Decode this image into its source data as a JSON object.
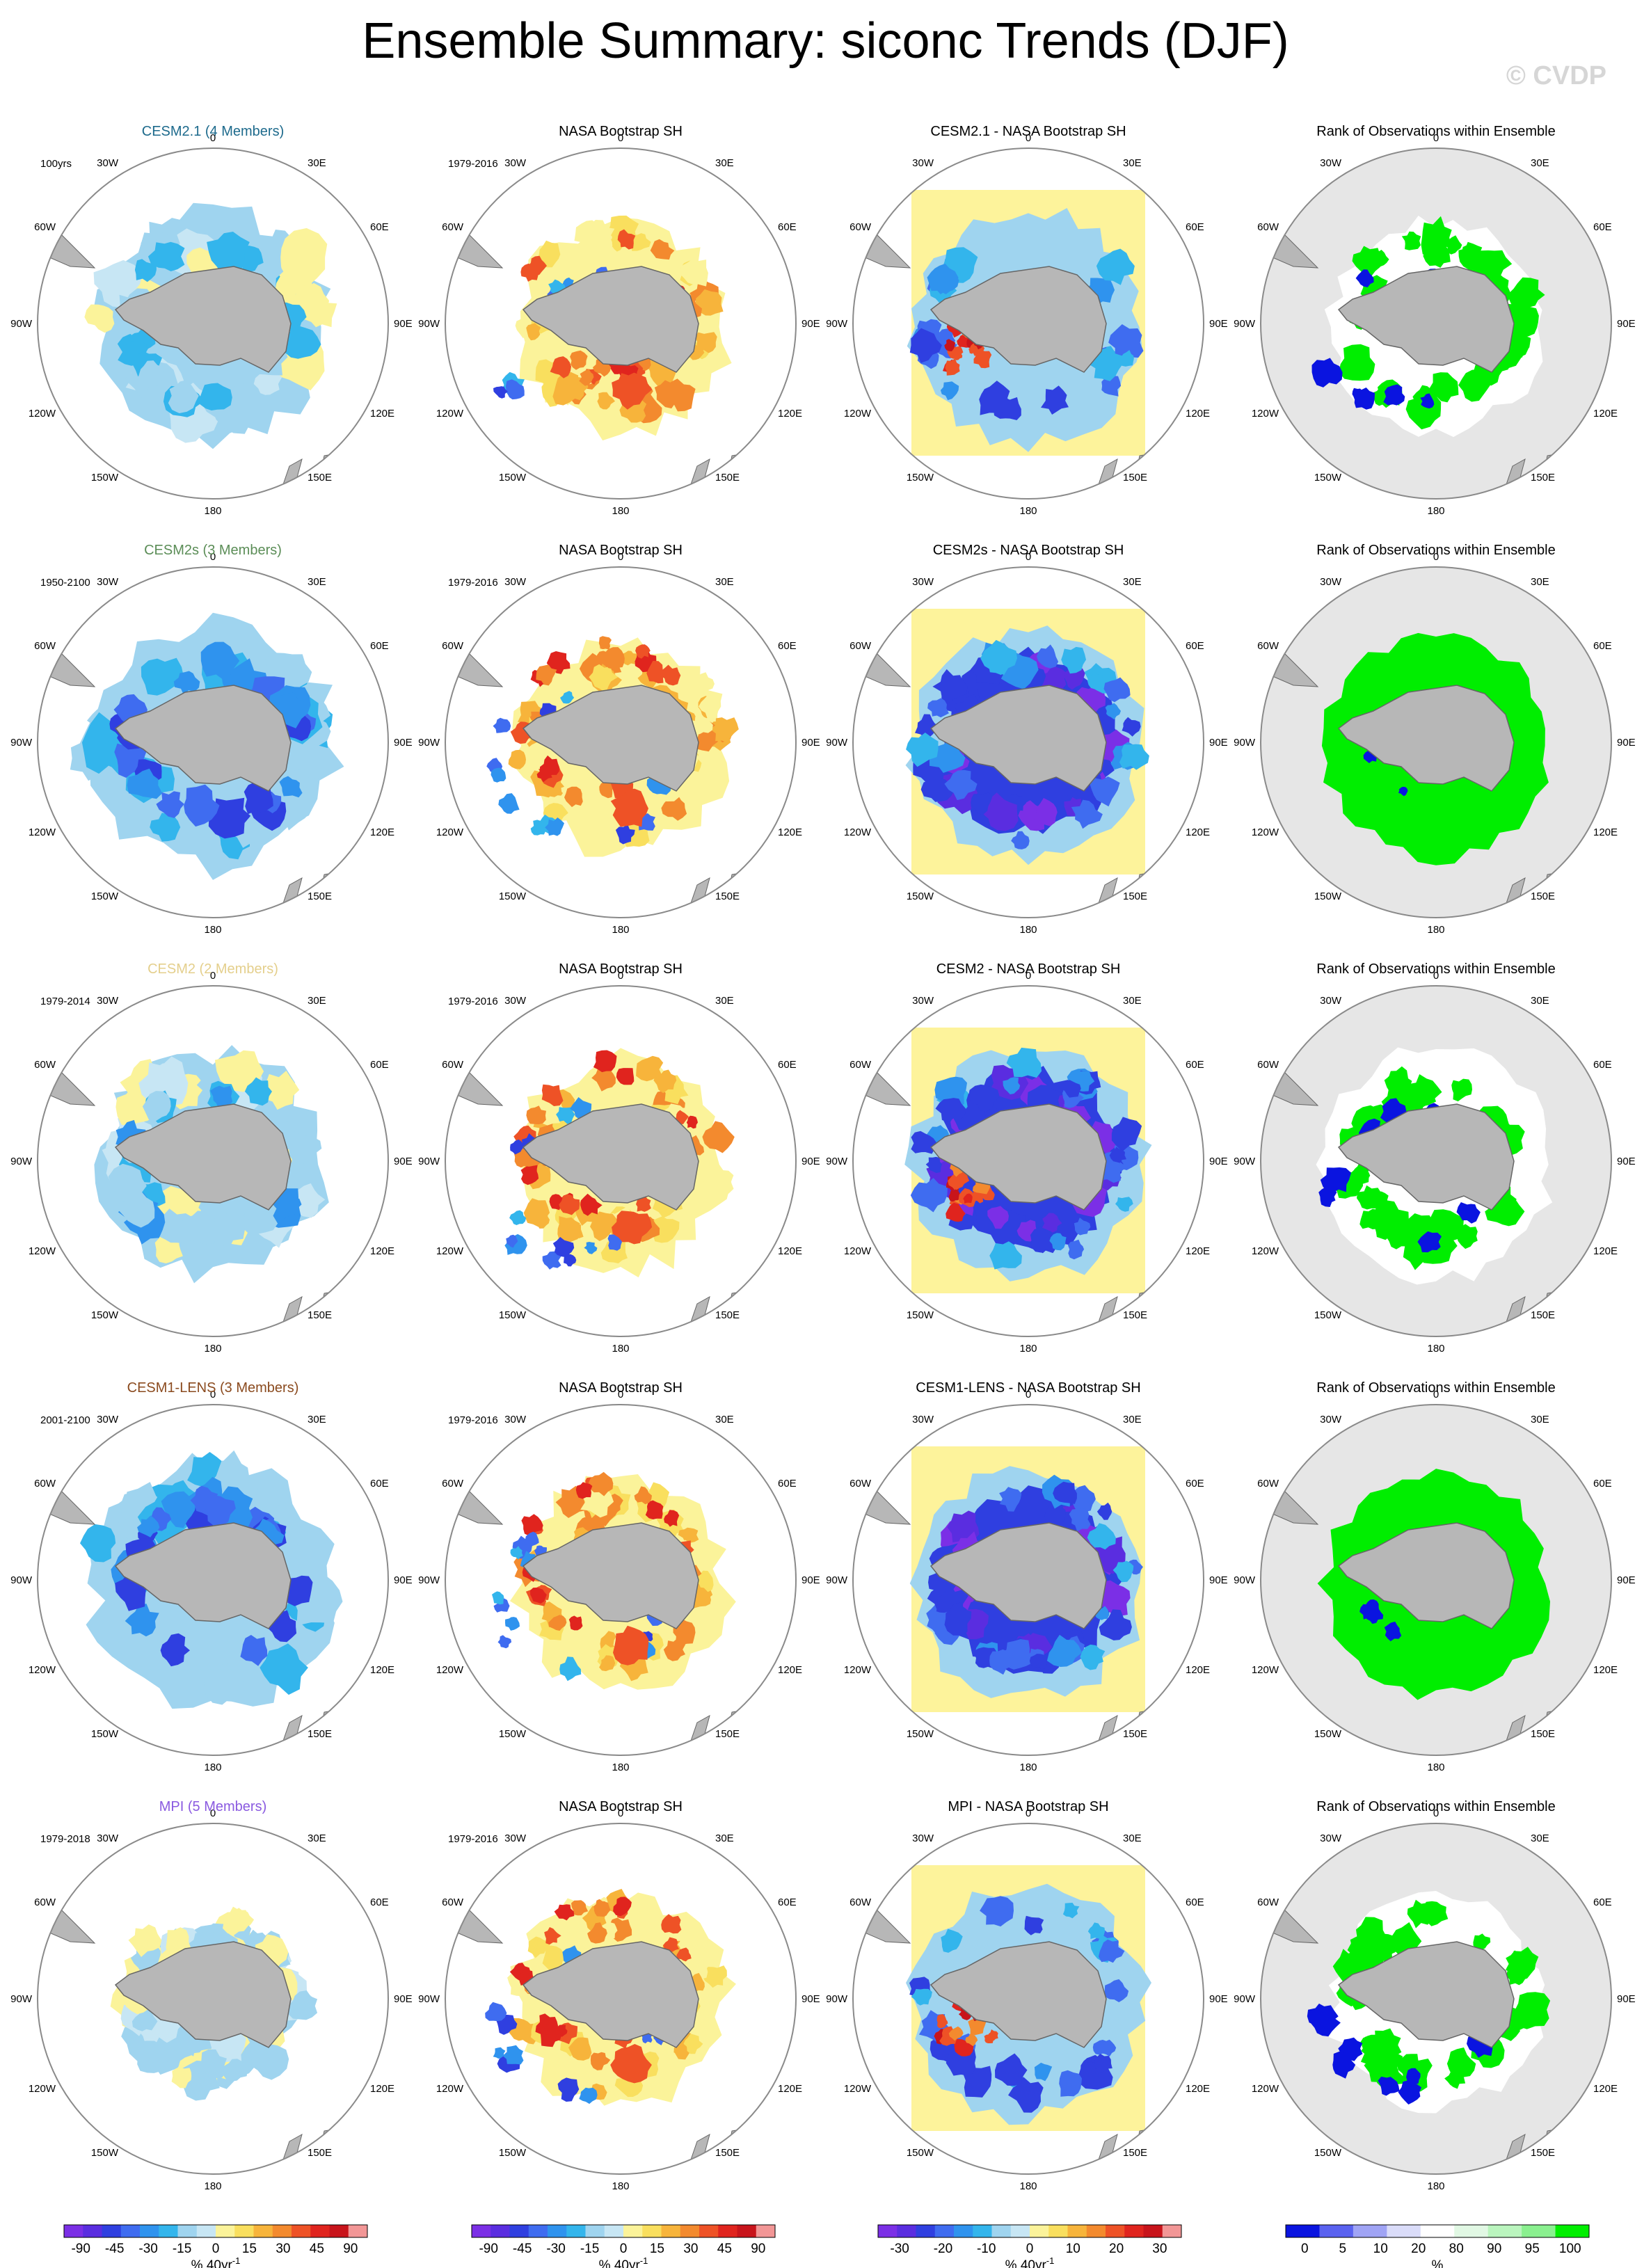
{
  "title": "Ensemble Summary: siconc Trends (DJF)",
  "credit": "© CVDP",
  "palette": {
    "diverging": [
      "#7b2fe6",
      "#5a2de0",
      "#2f3fe0",
      "#3f6cf0",
      "#2f93ee",
      "#33b5ec",
      "#9fd4ef",
      "#c7e6f4",
      "#fbf39a",
      "#f9df5e",
      "#f7b43b",
      "#f38a2e",
      "#ee5226",
      "#e0241e",
      "#c8141b",
      "#f29696"
    ],
    "rank": [
      "#0a14e0",
      "#5a62f0",
      "#a0a4f5",
      "#dadcf9",
      "#ffffff",
      "#e1f8e4",
      "#baf5be",
      "#8af08f",
      "#00ee00"
    ],
    "land": "#b7b7b7",
    "ocean_gray": "#e6e6e6",
    "yellow_fill": "#fdf39b"
  },
  "map_labels": {
    "top": "0",
    "bottom": "180",
    "upper_left": "30W",
    "upper_right": "30E",
    "left_upper": "60W",
    "right_upper": "60E",
    "left": "90W",
    "right": "90E",
    "left_lower": "120W",
    "right_lower": "120E",
    "lower_left": "150W",
    "lower_right": "150E"
  },
  "rows": [
    {
      "model_title": "CESM2.1 (4 Members)",
      "model_color": "#1d6a8c",
      "period": "100yrs",
      "obs_title": "NASA Bootstrap SH",
      "obs_period": "1979-2016",
      "diff_title": "CESM2.1 - NASA Bootstrap SH",
      "rank_title": "Rank of Observations within Ensemble",
      "model_pattern": "weak",
      "diff_pattern": "mixed_red",
      "rank_pattern": "mixed_blue"
    },
    {
      "model_title": "CESM2s (3 Members)",
      "model_color": "#5b8d57",
      "period": "1950-2100",
      "obs_title": "NASA Bootstrap SH",
      "obs_period": "1979-2016",
      "diff_title": "CESM2s - NASA Bootstrap SH",
      "rank_title": "Rank of Observations within Ensemble",
      "model_pattern": "strong_blue",
      "diff_pattern": "strong_purple",
      "rank_pattern": "full_green"
    },
    {
      "model_title": "CESM2 (2 Members)",
      "model_color": "#e4cf8c",
      "period": "1979-2014",
      "obs_title": "NASA Bootstrap SH",
      "obs_period": "1979-2016",
      "diff_title": "CESM2 - NASA Bootstrap SH",
      "rank_title": "Rank of Observations within Ensemble",
      "model_pattern": "moderate_blue",
      "diff_pattern": "purple_red",
      "rank_pattern": "mixed_white"
    },
    {
      "model_title": "CESM1-LENS (3 Members)",
      "model_color": "#8a4a1e",
      "period": "2001-2100",
      "obs_title": "NASA Bootstrap SH",
      "obs_period": "1979-2016",
      "diff_title": "CESM1-LENS - NASA Bootstrap SH",
      "rank_title": "Rank of Observations within Ensemble",
      "model_pattern": "strong_blue",
      "diff_pattern": "strong_purple",
      "rank_pattern": "full_green"
    },
    {
      "model_title": "MPI (5 Members)",
      "model_color": "#8a5ae0",
      "period": "1979-2018",
      "obs_title": "NASA Bootstrap SH",
      "obs_period": "1979-2016",
      "diff_title": "MPI - NASA Bootstrap SH",
      "rank_title": "Rank of Observations within Ensemble",
      "model_pattern": "small",
      "diff_pattern": "mixed_red",
      "rank_pattern": "mixed_blue"
    }
  ],
  "colorbars": [
    {
      "ticks": [
        "-90",
        "-45",
        "-30",
        "-15",
        "0",
        "15",
        "30",
        "45",
        "90"
      ],
      "unit": "% 40yr",
      "exponent": "-1"
    },
    {
      "ticks": [
        "-90",
        "-45",
        "-30",
        "-15",
        "0",
        "15",
        "30",
        "45",
        "90"
      ],
      "unit": "% 40yr",
      "exponent": "-1"
    },
    {
      "ticks": [
        "-30",
        "-20",
        "-10",
        "0",
        "10",
        "20",
        "30"
      ],
      "unit": "% 40yr",
      "exponent": "-1"
    },
    {
      "ticks": [
        "0",
        "5",
        "10",
        "20",
        "80",
        "90",
        "95",
        "100"
      ],
      "unit": "%",
      "exponent": ""
    }
  ]
}
